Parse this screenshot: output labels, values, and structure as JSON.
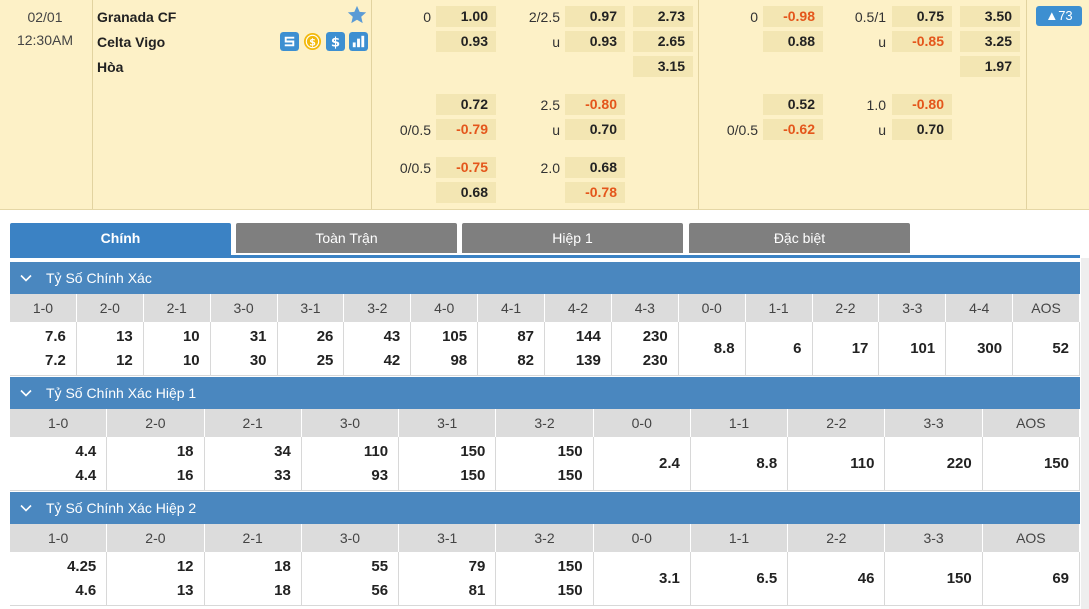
{
  "match": {
    "date": "02/01",
    "time": "12:30AM",
    "home": "Granada CF",
    "away": "Celta Vigo",
    "draw": "Hòa",
    "more_count": "▲73",
    "full_time": {
      "handicap_line": "0",
      "handicap_home": "1.00",
      "handicap_away": "0.93",
      "ou_line": "2/2.5",
      "ou_over": "0.97",
      "ou_under_label": "u",
      "ou_under": "0.93",
      "x12_home": "2.73",
      "x12_away": "2.65",
      "x12_draw": "3.15",
      "alt1_home": "0.72",
      "alt1_line": "0/0.5",
      "alt1_away": "-0.79",
      "alt1_ou_line": "2.5",
      "alt1_ou_over": "-0.80",
      "alt1_ou_under_label": "u",
      "alt1_ou_under": "0.70",
      "alt2_line": "0/0.5",
      "alt2_home": "-0.75",
      "alt2_away": "0.68",
      "alt2_ou_line": "2.0",
      "alt2_ou_over": "0.68",
      "alt2_ou_under": "-0.78"
    },
    "first_half": {
      "handicap_line": "0",
      "handicap_home": "-0.98",
      "handicap_away": "0.88",
      "ou_line": "0.5/1",
      "ou_over": "0.75",
      "ou_under_label": "u",
      "ou_under": "-0.85",
      "x12_home": "3.50",
      "x12_away": "3.25",
      "x12_draw": "1.97",
      "alt1_home": "0.52",
      "alt1_line": "0/0.5",
      "alt1_away": "-0.62",
      "alt1_ou_line": "1.0",
      "alt1_ou_over": "-0.80",
      "alt1_ou_under_label": "u",
      "alt1_ou_under": "0.70"
    }
  },
  "tabs": [
    {
      "label": "Chính",
      "active": true
    },
    {
      "label": "Toàn Trận",
      "active": false
    },
    {
      "label": "Hiệp 1",
      "active": false
    },
    {
      "label": "Đặc biệt",
      "active": false
    }
  ],
  "sections": [
    {
      "title": "Tỷ Số Chính Xác",
      "headers": [
        "1-0",
        "2-0",
        "2-1",
        "3-0",
        "3-1",
        "3-2",
        "4-0",
        "4-1",
        "4-2",
        "4-3",
        "0-0",
        "1-1",
        "2-2",
        "3-3",
        "4-4",
        "AOS"
      ],
      "top": [
        "7.6",
        "13",
        "10",
        "31",
        "26",
        "43",
        "105",
        "87",
        "144",
        "230",
        "",
        "",
        "",
        "",
        "",
        ""
      ],
      "bottom": [
        "7.2",
        "12",
        "10",
        "30",
        "25",
        "42",
        "98",
        "82",
        "139",
        "230",
        "",
        "",
        "",
        "",
        "",
        ""
      ],
      "single": [
        "",
        "",
        "",
        "",
        "",
        "",
        "",
        "",
        "",
        "",
        "8.8",
        "6",
        "17",
        "101",
        "300",
        "52"
      ]
    },
    {
      "title": "Tỷ Số Chính Xác Hiệp 1",
      "headers": [
        "1-0",
        "2-0",
        "2-1",
        "3-0",
        "3-1",
        "3-2",
        "0-0",
        "1-1",
        "2-2",
        "3-3",
        "AOS"
      ],
      "top": [
        "4.4",
        "18",
        "34",
        "110",
        "150",
        "150",
        "",
        "",
        "",
        "",
        ""
      ],
      "bottom": [
        "4.4",
        "16",
        "33",
        "93",
        "150",
        "150",
        "",
        "",
        "",
        "",
        ""
      ],
      "single": [
        "",
        "",
        "",
        "",
        "",
        "",
        "2.4",
        "8.8",
        "110",
        "220",
        "150"
      ]
    },
    {
      "title": "Tỷ Số Chính Xác Hiệp 2",
      "headers": [
        "1-0",
        "2-0",
        "2-1",
        "3-0",
        "3-1",
        "3-2",
        "0-0",
        "1-1",
        "2-2",
        "3-3",
        "AOS"
      ],
      "top": [
        "4.25",
        "12",
        "18",
        "55",
        "79",
        "150",
        "",
        "",
        "",
        "",
        ""
      ],
      "bottom": [
        "4.6",
        "13",
        "18",
        "56",
        "81",
        "150",
        "",
        "",
        "",
        "",
        ""
      ],
      "single": [
        "",
        "",
        "",
        "",
        "",
        "",
        "3.1",
        "6.5",
        "46",
        "150",
        "69"
      ]
    }
  ],
  "colors": {
    "accent": "#3b82c4",
    "negative_odds": "#e4561b",
    "match_bg": "#fdf1c7"
  },
  "icons": [
    "star-icon",
    "stats-icon",
    "coin-icon",
    "dollar-icon",
    "bar-chart-icon",
    "chevron-down-icon"
  ]
}
